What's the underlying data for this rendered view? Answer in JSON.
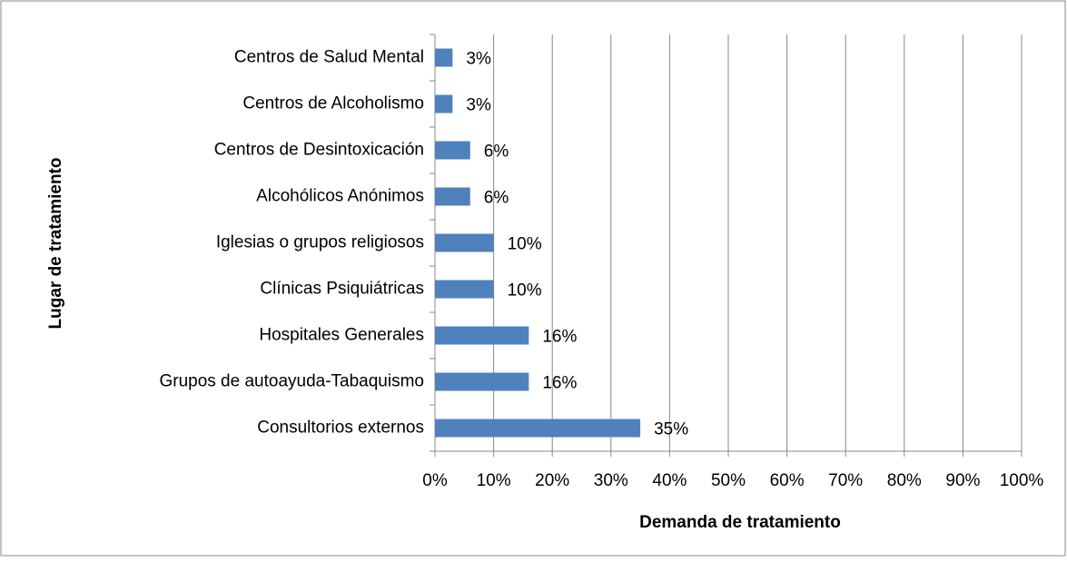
{
  "chart_data": {
    "type": "hbar",
    "x_label": "Demanda de tratamiento",
    "y_label": "Lugar de tratamiento",
    "categories": [
      "Centros de Salud Mental",
      "Centros de Alcoholismo",
      "Centros de Desintoxicación",
      "Alcohólicos Anónimos",
      "Iglesias o grupos religiosos",
      "Clínicas Psiquiátricas",
      "Hospitales Generales",
      "Grupos de autoayuda-Tabaquismo",
      "Consultorios externos"
    ],
    "values": [
      3,
      3,
      6,
      6,
      10,
      10,
      16,
      16,
      35
    ],
    "value_labels": [
      "3%",
      "3%",
      "6%",
      "6%",
      "10%",
      "10%",
      "16%",
      "16%",
      "35%"
    ],
    "color": "#4f81bd",
    "xlim": [
      0,
      100
    ],
    "xticks": [
      {
        "value": 0,
        "label": "0%"
      },
      {
        "value": 10,
        "label": "10%"
      },
      {
        "value": 20,
        "label": "20%"
      },
      {
        "value": 30,
        "label": "30%"
      },
      {
        "value": 40,
        "label": "40%"
      },
      {
        "value": 50,
        "label": "50%"
      },
      {
        "value": 60,
        "label": "60%"
      },
      {
        "value": 70,
        "label": "70%"
      },
      {
        "value": 80,
        "label": "80%"
      },
      {
        "value": 90,
        "label": "90%"
      },
      {
        "value": 100,
        "label": "100%"
      }
    ],
    "grid": true
  }
}
